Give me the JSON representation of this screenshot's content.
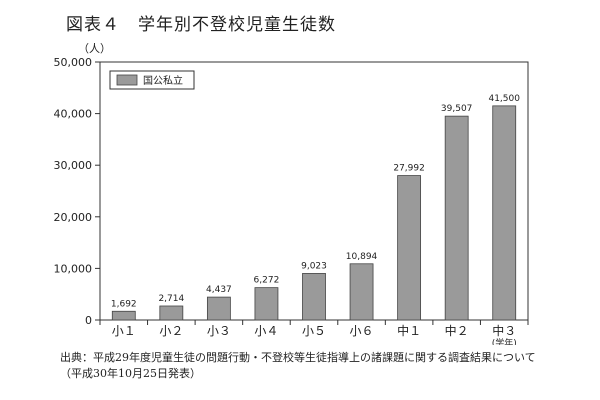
{
  "figure_label": "図表４　学年別不登校児童生徒数",
  "source_note": "出典：平成29年度児童生徒の問題行動・不登校等生徒指導上の諸課題に関する調査結果について（平成30年10月25日発表）",
  "chart_data": {
    "type": "bar",
    "ylabel": "（人）",
    "ylim": [
      0,
      50000
    ],
    "yticks": [
      0,
      10000,
      20000,
      30000,
      40000,
      50000
    ],
    "ytick_labels": [
      "0",
      "10,000",
      "20,000",
      "30,000",
      "40,000",
      "50,000"
    ],
    "categories": [
      "小１",
      "小２",
      "小３",
      "小４",
      "小５",
      "小６",
      "中１",
      "中２",
      "中３"
    ],
    "category_notes": [
      "",
      "",
      "",
      "",
      "",
      "",
      "",
      "",
      "(学年)"
    ],
    "series": [
      {
        "name": "国公私立",
        "values": [
          1692,
          2714,
          4437,
          6272,
          9023,
          10894,
          27992,
          39507,
          41500
        ],
        "data_labels": [
          "1,692",
          "2,714",
          "4,437",
          "6,272",
          "9,023",
          "10,894",
          "27,992",
          "39,507",
          "41,500"
        ]
      }
    ],
    "legend_position": "top-left",
    "grid": false,
    "colors": {
      "bar": "#9a9a9a",
      "bar_stroke": "#444444",
      "axis": "#333333"
    }
  }
}
